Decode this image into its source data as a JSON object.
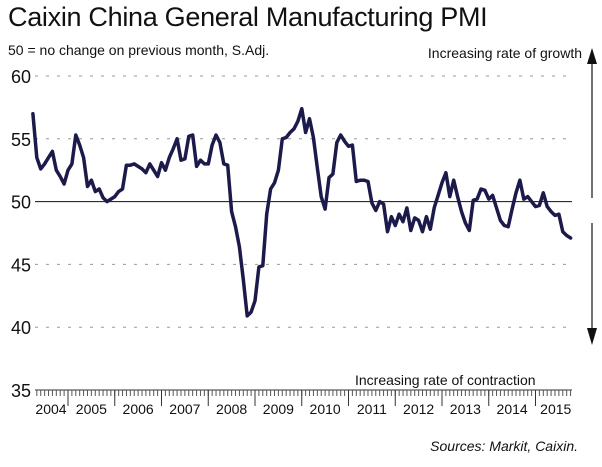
{
  "chart_data": {
    "type": "line",
    "title": "Caixin China General Manufacturing PMI",
    "subtitle": "50 = no change on previous month, S.Adj.",
    "annotations": {
      "growth": "Increasing rate of growth",
      "contraction": "Increasing rate of contraction"
    },
    "source": "Sources: Markit, Caixin.",
    "xlabel": "",
    "ylabel": "",
    "ylim": [
      35,
      60
    ],
    "yticks": [
      35,
      40,
      45,
      50,
      55,
      60
    ],
    "ytick_labels": [
      "35",
      "40",
      "45",
      "50",
      "55",
      "60"
    ],
    "xtick_labels": [
      "2004",
      "2005",
      "2006",
      "2007",
      "2008",
      "2009",
      "2010",
      "2011",
      "2012",
      "2013",
      "2014",
      "2015"
    ],
    "reference_line": 50,
    "grid": "dashed horizontal",
    "start": "2004-04",
    "frequency": "monthly",
    "series": [
      {
        "name": "PMI",
        "color": "#1c1a4a",
        "values": [
          57.0,
          53.5,
          52.6,
          53.0,
          53.5,
          54.0,
          52.5,
          52.0,
          51.4,
          52.5,
          53.0,
          55.3,
          54.5,
          53.5,
          51.2,
          51.7,
          50.8,
          51.0,
          50.3,
          50.0,
          50.2,
          50.4,
          50.8,
          51.0,
          52.9,
          52.9,
          53.0,
          52.8,
          52.6,
          52.3,
          53.0,
          52.5,
          52.0,
          53.1,
          52.5,
          53.5,
          54.2,
          55.0,
          53.3,
          53.4,
          55.2,
          55.3,
          52.8,
          53.3,
          53.0,
          53.0,
          54.5,
          55.3,
          54.7,
          53.0,
          52.9,
          49.2,
          48.0,
          46.4,
          43.8,
          40.9,
          41.2,
          42.1,
          44.8,
          44.9,
          49.0,
          51.0,
          51.5,
          52.5,
          55.0,
          55.1,
          55.5,
          55.8,
          56.4,
          57.4,
          55.5,
          56.6,
          55.1,
          52.7,
          50.4,
          49.4,
          51.9,
          52.2,
          54.7,
          55.3,
          54.8,
          54.4,
          54.5,
          51.6,
          51.7,
          51.7,
          51.6,
          49.9,
          49.3,
          50.0,
          49.8,
          47.6,
          48.8,
          48.1,
          49.0,
          48.4,
          49.5,
          47.7,
          48.7,
          48.5,
          47.6,
          48.8,
          47.8,
          49.5,
          50.5,
          51.5,
          52.3,
          50.4,
          51.7,
          50.4,
          49.2,
          48.3,
          47.7,
          50.1,
          50.2,
          51.0,
          50.9,
          50.2,
          50.5,
          49.5,
          48.5,
          48.1,
          48.0,
          49.4,
          50.7,
          51.7,
          50.2,
          50.4,
          50.0,
          49.6,
          49.7,
          50.7,
          49.6,
          49.2,
          48.9,
          49.0,
          47.6,
          47.3,
          47.1
        ]
      }
    ]
  },
  "colors": {
    "line": "#1c1a4a",
    "grid": "#999999",
    "axis": "#333333"
  }
}
